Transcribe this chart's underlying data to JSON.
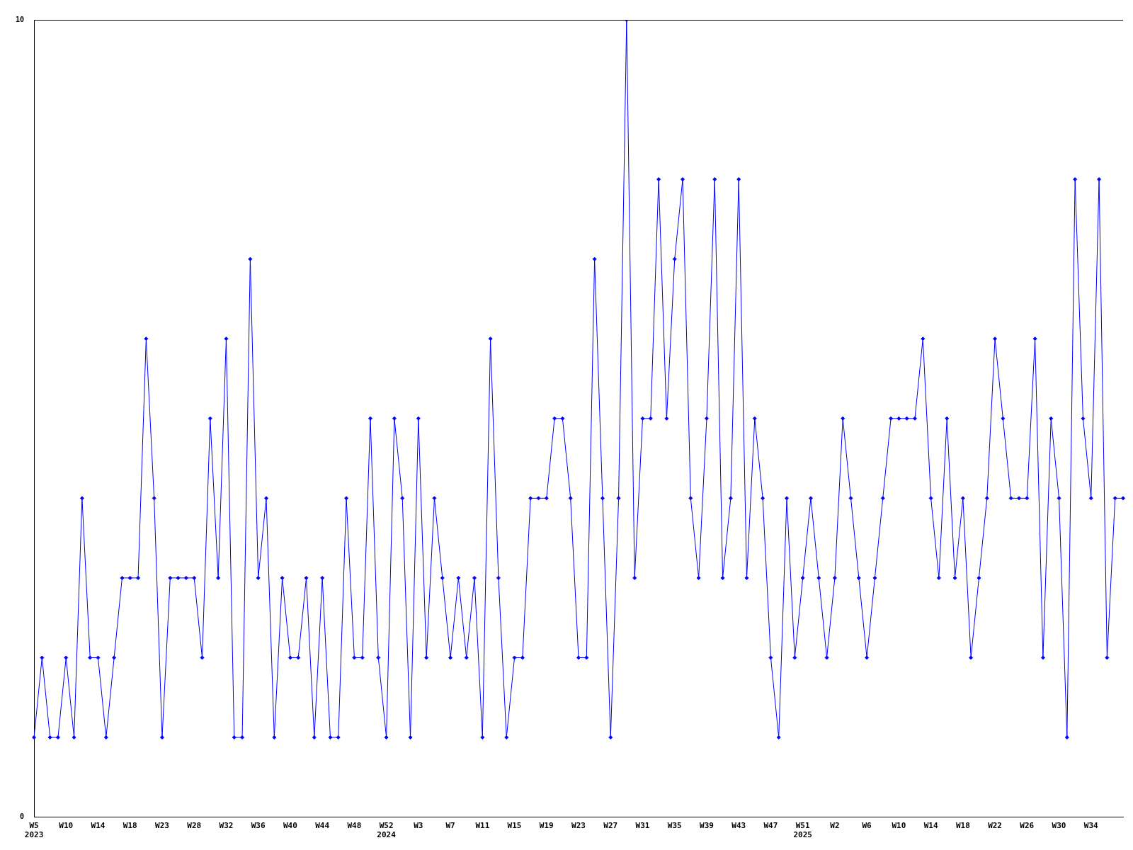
{
  "chart_data": {
    "type": "line",
    "categories": [
      "W5\n2023",
      null,
      null,
      null,
      "W10",
      null,
      null,
      null,
      "W14",
      null,
      null,
      null,
      "W18",
      null,
      null,
      null,
      "W23",
      null,
      null,
      null,
      "W28",
      null,
      null,
      null,
      "W32",
      null,
      null,
      null,
      "W36",
      null,
      null,
      null,
      "W40",
      null,
      null,
      null,
      "W44",
      null,
      null,
      null,
      "W48",
      null,
      null,
      null,
      "W52\n2024",
      null,
      null,
      null,
      "W3",
      null,
      null,
      null,
      "W7",
      null,
      null,
      null,
      "W11",
      null,
      null,
      null,
      "W15",
      null,
      null,
      null,
      "W19",
      null,
      null,
      null,
      "W23",
      null,
      null,
      null,
      "W27",
      null,
      null,
      null,
      "W31",
      null,
      null,
      null,
      "W35",
      null,
      null,
      null,
      "W39",
      null,
      null,
      null,
      "W43",
      null,
      null,
      null,
      "W47",
      null,
      null,
      null,
      "W51\n2025",
      null,
      null,
      null,
      "W2",
      null,
      null,
      null,
      "W6",
      null,
      null,
      null,
      "W10",
      null,
      null,
      null,
      "W14",
      null,
      null,
      null,
      "W18",
      null,
      null,
      null,
      "W22",
      null,
      null,
      null,
      "W26",
      null,
      null,
      null,
      "W30",
      null,
      null,
      null,
      "W34",
      null,
      null,
      null,
      null
    ],
    "values": [
      1,
      2,
      1,
      1,
      2,
      1,
      4,
      2,
      2,
      1,
      2,
      3,
      3,
      3,
      6,
      4,
      1,
      3,
      3,
      3,
      3,
      2,
      5,
      3,
      6,
      1,
      1,
      7,
      3,
      4,
      1,
      3,
      2,
      2,
      3,
      1,
      3,
      1,
      1,
      4,
      2,
      2,
      5,
      2,
      1,
      5,
      4,
      1,
      5,
      2,
      4,
      3,
      2,
      3,
      2,
      3,
      1,
      6,
      3,
      1,
      2,
      2,
      4,
      4,
      4,
      5,
      5,
      4,
      2,
      2,
      7,
      4,
      1,
      4,
      10,
      3,
      5,
      5,
      8,
      5,
      7,
      8,
      4,
      3,
      5,
      8,
      3,
      4,
      8,
      3,
      5,
      4,
      2,
      1,
      4,
      2,
      3,
      4,
      3,
      2,
      3,
      5,
      4,
      3,
      2,
      3,
      4,
      5,
      5,
      5,
      5,
      6,
      4,
      3,
      5,
      3,
      4,
      2,
      3,
      4,
      6,
      5,
      4,
      4,
      4,
      6,
      2,
      5,
      4,
      1,
      8,
      5,
      4,
      8,
      2,
      4,
      4
    ],
    "color": "#0000ff",
    "ylim": [
      0,
      10
    ],
    "yticks": [
      0,
      10
    ],
    "marker": "diamond",
    "grid": false,
    "legend": false
  }
}
